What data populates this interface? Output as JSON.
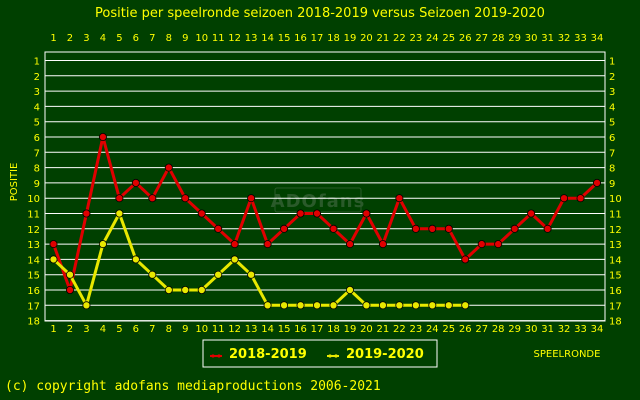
{
  "chart_data": {
    "type": "line",
    "title": "Positie per speelronde seizoen 2018-2019 versus Seizoen 2019-2020",
    "xlabel": "SPEELRONDE",
    "ylabel": "POSITIE",
    "xlim": [
      1,
      34
    ],
    "ylim": [
      1,
      18
    ],
    "y_inverted": true,
    "grid": true,
    "legend": "bottom-left",
    "x_ticks": [
      "1",
      "2",
      "3",
      "4",
      "5",
      "6",
      "7",
      "8",
      "9",
      "10",
      "11",
      "12",
      "13",
      "14",
      "15",
      "16",
      "17",
      "18",
      "19",
      "20",
      "21",
      "22",
      "23",
      "24",
      "25",
      "26",
      "27",
      "28",
      "29",
      "30",
      "31",
      "32",
      "33",
      "34"
    ],
    "y_ticks": [
      "1",
      "2",
      "3",
      "4",
      "5",
      "6",
      "7",
      "8",
      "9",
      "10",
      "11",
      "12",
      "13",
      "14",
      "15",
      "16",
      "17",
      "18"
    ],
    "series": [
      {
        "name": "2018-2019",
        "color": "#e00000",
        "x": [
          1,
          2,
          3,
          4,
          5,
          6,
          7,
          8,
          9,
          10,
          11,
          12,
          13,
          14,
          15,
          16,
          17,
          18,
          19,
          20,
          21,
          22,
          23,
          24,
          25,
          26,
          27,
          28,
          29,
          30,
          31,
          32,
          33,
          34
        ],
        "values": [
          13,
          16,
          11,
          6,
          10,
          9,
          10,
          8,
          10,
          11,
          12,
          13,
          10,
          13,
          12,
          11,
          11,
          12,
          13,
          11,
          13,
          10,
          12,
          12,
          12,
          14,
          13,
          13,
          12,
          11,
          12,
          10,
          10,
          9
        ]
      },
      {
        "name": "2019-2020",
        "color": "#e8e800",
        "x": [
          1,
          2,
          3,
          4,
          5,
          6,
          7,
          8,
          9,
          10,
          11,
          12,
          13,
          14,
          15,
          16,
          17,
          18,
          19,
          20,
          21,
          22,
          23,
          24,
          25,
          26
        ],
        "values": [
          14,
          15,
          17,
          13,
          11,
          14,
          15,
          16,
          16,
          16,
          15,
          14,
          15,
          17,
          17,
          17,
          17,
          17,
          16,
          17,
          17,
          17,
          17,
          17,
          17,
          17
        ]
      }
    ]
  },
  "watermark": "ADOfans",
  "copyright": "(c) copyright adofans mediaproductions 2006-2021"
}
